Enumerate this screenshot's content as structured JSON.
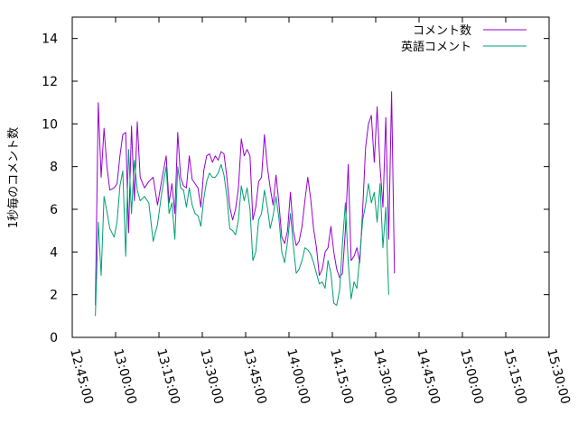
{
  "chart_data": {
    "type": "line",
    "title": "",
    "xlabel": "",
    "ylabel": "1秒毎のコメント数",
    "xlim": [
      "12:45:00",
      "15:30:00"
    ],
    "ylim": [
      0,
      15
    ],
    "x_ticks": [
      "12:45:00",
      "13:00:00",
      "13:15:00",
      "13:30:00",
      "13:45:00",
      "14:00:00",
      "14:15:00",
      "14:30:00",
      "14:45:00",
      "15:00:00",
      "15:15:00",
      "15:30:00"
    ],
    "y_ticks": [
      "0",
      "2",
      "4",
      "6",
      "8",
      "10",
      "12",
      "14"
    ],
    "grid": false,
    "legend_position": "top-right",
    "series": [
      {
        "name": "コメント数",
        "color": "#9400d3",
        "points": [
          [
            "12:53:00",
            1.5
          ],
          [
            "12:54:00",
            11.0
          ],
          [
            "12:55:00",
            7.5
          ],
          [
            "12:56:00",
            9.8
          ],
          [
            "12:57:00",
            8.0
          ],
          [
            "12:58:00",
            6.9
          ],
          [
            "12:59:30",
            7.0
          ],
          [
            "13:00:30",
            7.2
          ],
          [
            "13:01:30",
            8.5
          ],
          [
            "13:02:30",
            9.5
          ],
          [
            "13:03:30",
            9.6
          ],
          [
            "13:04:30",
            4.9
          ],
          [
            "13:05:30",
            9.9
          ],
          [
            "13:06:30",
            6.4
          ],
          [
            "13:07:30",
            10.1
          ],
          [
            "13:08:30",
            7.5
          ],
          [
            "13:10:00",
            7.0
          ],
          [
            "13:11:30",
            7.3
          ],
          [
            "13:13:00",
            7.5
          ],
          [
            "13:14:30",
            6.2
          ],
          [
            "13:16:00",
            7.4
          ],
          [
            "13:17:30",
            8.5
          ],
          [
            "13:18:30",
            6.3
          ],
          [
            "13:19:30",
            7.2
          ],
          [
            "13:20:30",
            5.8
          ],
          [
            "13:21:30",
            9.6
          ],
          [
            "13:22:30",
            7.5
          ],
          [
            "13:23:30",
            7.1
          ],
          [
            "13:24:30",
            7.0
          ],
          [
            "13:25:30",
            8.5
          ],
          [
            "13:26:30",
            7.4
          ],
          [
            "13:27:30",
            7.2
          ],
          [
            "13:28:30",
            7.0
          ],
          [
            "13:29:30",
            6.1
          ],
          [
            "13:30:30",
            7.8
          ],
          [
            "13:31:30",
            8.5
          ],
          [
            "13:32:30",
            8.6
          ],
          [
            "13:33:30",
            8.2
          ],
          [
            "13:34:30",
            8.5
          ],
          [
            "13:35:30",
            8.3
          ],
          [
            "13:36:30",
            8.7
          ],
          [
            "13:37:30",
            8.6
          ],
          [
            "13:38:30",
            7.5
          ],
          [
            "13:39:30",
            6.1
          ],
          [
            "13:40:30",
            5.5
          ],
          [
            "13:41:30",
            6.0
          ],
          [
            "13:42:30",
            7.0
          ],
          [
            "13:43:30",
            9.3
          ],
          [
            "13:44:30",
            8.5
          ],
          [
            "13:45:30",
            8.8
          ],
          [
            "13:46:30",
            8.5
          ],
          [
            "13:47:30",
            5.5
          ],
          [
            "13:48:30",
            6.1
          ],
          [
            "13:49:30",
            7.3
          ],
          [
            "13:50:30",
            7.5
          ],
          [
            "13:51:30",
            9.5
          ],
          [
            "13:52:30",
            8.0
          ],
          [
            "13:53:30",
            7.0
          ],
          [
            "13:54:30",
            6.2
          ],
          [
            "13:55:30",
            7.6
          ],
          [
            "13:56:30",
            6.3
          ],
          [
            "13:57:30",
            4.7
          ],
          [
            "13:58:30",
            4.4
          ],
          [
            "13:59:30",
            5.0
          ],
          [
            "14:00:30",
            6.8
          ],
          [
            "14:01:30",
            5.0
          ],
          [
            "14:02:30",
            4.3
          ],
          [
            "14:03:30",
            4.5
          ],
          [
            "14:04:30",
            5.2
          ],
          [
            "14:05:30",
            6.4
          ],
          [
            "14:06:30",
            7.5
          ],
          [
            "14:07:30",
            6.5
          ],
          [
            "14:08:30",
            5.1
          ],
          [
            "14:09:30",
            4.2
          ],
          [
            "14:10:30",
            2.9
          ],
          [
            "14:11:30",
            3.2
          ],
          [
            "14:12:30",
            4.0
          ],
          [
            "14:13:30",
            4.2
          ],
          [
            "14:14:30",
            5.2
          ],
          [
            "14:15:30",
            4.0
          ],
          [
            "14:16:30",
            3.2
          ],
          [
            "14:17:30",
            2.8
          ],
          [
            "14:18:30",
            3.0
          ],
          [
            "14:19:30",
            5.0
          ],
          [
            "14:20:30",
            8.1
          ],
          [
            "14:21:30",
            3.6
          ],
          [
            "14:22:30",
            3.8
          ],
          [
            "14:23:30",
            4.2
          ],
          [
            "14:24:30",
            3.5
          ],
          [
            "14:25:30",
            6.0
          ],
          [
            "14:26:30",
            8.9
          ],
          [
            "14:27:30",
            10.0
          ],
          [
            "14:28:30",
            10.4
          ],
          [
            "14:29:30",
            8.2
          ],
          [
            "14:30:30",
            10.8
          ],
          [
            "14:31:30",
            8.0
          ],
          [
            "14:32:30",
            6.1
          ],
          [
            "14:33:30",
            10.3
          ],
          [
            "14:34:30",
            4.6
          ],
          [
            "14:35:30",
            11.5
          ],
          [
            "14:36:30",
            3.0
          ]
        ]
      },
      {
        "name": "英語コメント",
        "color": "#009e73",
        "points": [
          [
            "12:53:00",
            1.0
          ],
          [
            "12:54:00",
            5.4
          ],
          [
            "12:55:00",
            2.9
          ],
          [
            "12:56:00",
            6.6
          ],
          [
            "12:57:00",
            5.9
          ],
          [
            "12:58:00",
            5.1
          ],
          [
            "12:59:30",
            4.7
          ],
          [
            "13:00:30",
            5.4
          ],
          [
            "13:01:30",
            7.1
          ],
          [
            "13:02:30",
            7.8
          ],
          [
            "13:03:30",
            3.8
          ],
          [
            "13:04:30",
            8.8
          ],
          [
            "13:05:30",
            5.8
          ],
          [
            "13:06:30",
            8.3
          ],
          [
            "13:07:30",
            6.9
          ],
          [
            "13:08:30",
            6.4
          ],
          [
            "13:10:00",
            6.6
          ],
          [
            "13:11:30",
            6.3
          ],
          [
            "13:13:00",
            4.5
          ],
          [
            "13:14:30",
            5.3
          ],
          [
            "13:16:00",
            6.8
          ],
          [
            "13:17:30",
            8.0
          ],
          [
            "13:18:30",
            5.8
          ],
          [
            "13:19:30",
            6.3
          ],
          [
            "13:20:30",
            4.6
          ],
          [
            "13:21:30",
            8.0
          ],
          [
            "13:22:30",
            7.0
          ],
          [
            "13:23:30",
            6.9
          ],
          [
            "13:24:30",
            6.1
          ],
          [
            "13:25:30",
            7.0
          ],
          [
            "13:26:30",
            6.2
          ],
          [
            "13:27:30",
            5.8
          ],
          [
            "13:28:30",
            5.7
          ],
          [
            "13:29:30",
            5.2
          ],
          [
            "13:30:30",
            6.5
          ],
          [
            "13:31:30",
            7.3
          ],
          [
            "13:32:30",
            7.7
          ],
          [
            "13:33:30",
            7.5
          ],
          [
            "13:34:30",
            7.5
          ],
          [
            "13:35:30",
            7.7
          ],
          [
            "13:36:30",
            8.1
          ],
          [
            "13:37:30",
            7.6
          ],
          [
            "13:38:30",
            6.6
          ],
          [
            "13:39:30",
            5.1
          ],
          [
            "13:40:30",
            5.0
          ],
          [
            "13:41:30",
            4.8
          ],
          [
            "13:42:30",
            5.5
          ],
          [
            "13:43:30",
            7.1
          ],
          [
            "13:44:30",
            6.4
          ],
          [
            "13:45:30",
            7.0
          ],
          [
            "13:46:30",
            6.0
          ],
          [
            "13:47:30",
            3.6
          ],
          [
            "13:48:30",
            4.0
          ],
          [
            "13:49:30",
            5.5
          ],
          [
            "13:50:30",
            5.8
          ],
          [
            "13:51:30",
            6.9
          ],
          [
            "13:52:30",
            6.1
          ],
          [
            "13:53:30",
            5.1
          ],
          [
            "13:54:30",
            5.7
          ],
          [
            "13:55:30",
            6.6
          ],
          [
            "13:56:30",
            5.6
          ],
          [
            "13:57:30",
            4.0
          ],
          [
            "13:58:30",
            3.5
          ],
          [
            "13:59:30",
            4.5
          ],
          [
            "14:00:30",
            5.8
          ],
          [
            "14:01:30",
            4.3
          ],
          [
            "14:02:30",
            3.0
          ],
          [
            "14:03:30",
            3.2
          ],
          [
            "14:04:30",
            3.6
          ],
          [
            "14:05:30",
            4.2
          ],
          [
            "14:06:30",
            4.1
          ],
          [
            "14:07:30",
            3.9
          ],
          [
            "14:08:30",
            3.5
          ],
          [
            "14:09:30",
            3.0
          ],
          [
            "14:10:30",
            2.5
          ],
          [
            "14:11:30",
            2.6
          ],
          [
            "14:12:30",
            2.3
          ],
          [
            "14:13:30",
            3.6
          ],
          [
            "14:14:30",
            3.0
          ],
          [
            "14:15:30",
            1.6
          ],
          [
            "14:16:30",
            1.5
          ],
          [
            "14:17:30",
            2.2
          ],
          [
            "14:18:30",
            4.4
          ],
          [
            "14:19:30",
            6.3
          ],
          [
            "14:20:30",
            3.5
          ],
          [
            "14:21:30",
            1.8
          ],
          [
            "14:22:30",
            2.6
          ],
          [
            "14:23:30",
            2.3
          ],
          [
            "14:24:30",
            3.8
          ],
          [
            "14:25:30",
            5.5
          ],
          [
            "14:26:30",
            6.2
          ],
          [
            "14:27:30",
            7.2
          ],
          [
            "14:28:30",
            6.3
          ],
          [
            "14:29:30",
            6.8
          ],
          [
            "14:30:30",
            5.4
          ],
          [
            "14:31:30",
            7.2
          ],
          [
            "14:32:30",
            4.2
          ],
          [
            "14:33:30",
            6.1
          ],
          [
            "14:34:30",
            2.0
          ]
        ]
      }
    ]
  }
}
